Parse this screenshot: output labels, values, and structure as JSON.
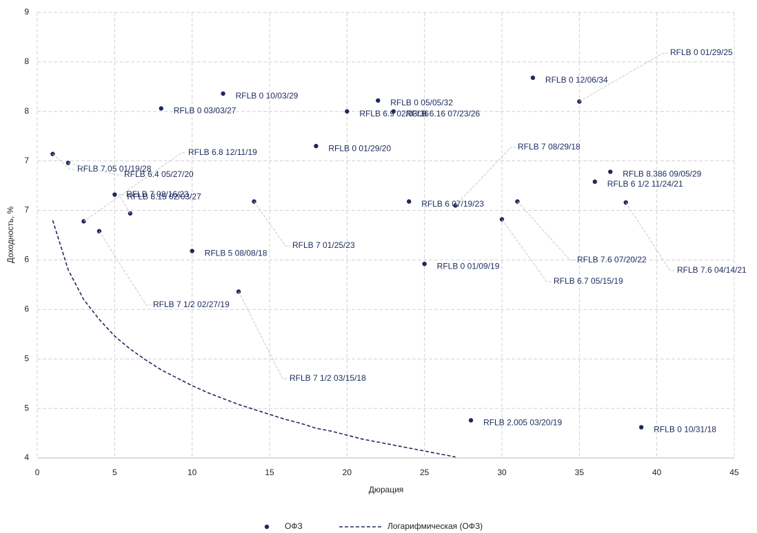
{
  "chart_data": {
    "type": "scatter",
    "xlabel": "Дюрация",
    "ylabel": "Доходность, %",
    "xlim": [
      0,
      45
    ],
    "xticks": [
      0,
      5,
      10,
      15,
      20,
      25,
      30,
      35,
      40,
      45
    ],
    "ylim": [
      4,
      8.5
    ],
    "yticks": [
      {
        "value": 4,
        "label": "4"
      },
      {
        "value": 4.5,
        "label": "5"
      },
      {
        "value": 5,
        "label": "5"
      },
      {
        "value": 5.5,
        "label": "6"
      },
      {
        "value": 6,
        "label": "6"
      },
      {
        "value": 6.5,
        "label": "7"
      },
      {
        "value": 7,
        "label": "7"
      },
      {
        "value": 7.5,
        "label": "8"
      },
      {
        "value": 8,
        "label": "8"
      },
      {
        "value": 8.5,
        "label": "9"
      }
    ],
    "grid": true,
    "series": [
      {
        "name": "ОФЗ",
        "color": "#1c2a5c",
        "x": [
          1,
          2,
          3,
          4,
          5,
          6,
          8,
          10,
          12,
          13,
          14,
          18,
          20,
          22,
          23,
          24,
          25,
          27,
          28,
          30,
          31,
          32,
          35,
          36,
          37,
          38,
          39
        ],
        "values": [
          7.07,
          6.98,
          6.39,
          6.29,
          6.66,
          6.47,
          7.53,
          6.09,
          7.68,
          5.68,
          6.59,
          7.15,
          7.5,
          7.61,
          7.5,
          6.59,
          5.96,
          6.55,
          4.38,
          6.41,
          6.59,
          7.84,
          7.6,
          6.79,
          6.89,
          6.58,
          4.31
        ],
        "labels": [
          "RFLB 7.05 01/19/28",
          "RFLB 6.4 05/27/20",
          "RFLB 6.8 12/11/19",
          "RFLB 7 1/2 02/27/19",
          "RFLB 8.15 02/03/27",
          "RFLB 7 08/16/23",
          "RFLB 0 03/03/27",
          "RFLB 5 08/08/18",
          "RFLB 0 10/03/29",
          "RFLB 7 1/2 03/15/18",
          "RFLB 7 01/25/23",
          "RFLB 0 01/29/20",
          "RFLB 6.9 02/03/36",
          "RFLB 0 05/05/32",
          "RFLB 6.16 07/23/26",
          "RFLB 6 07/19/23",
          "RFLB 0 01/09/19",
          "RFLB 7 08/29/18",
          "RFLB 2.005 03/20/19",
          "RFLB 6.7 05/15/19",
          "RFLB 7.6 07/20/22",
          "RFLB 0 12/06/34",
          "RFLB 0 01/29/25",
          "RFLB 6 1/2 11/24/21",
          "RFLB 8.386 09/05/29",
          "RFLB 7.6 04/14/21",
          "RFLB 0 10/31/18"
        ]
      },
      {
        "name": "Логарифмическая (ОФЗ)",
        "color": "#1c2a5c",
        "line": "dashed",
        "x": [
          1,
          2,
          3,
          4,
          5,
          6,
          7,
          8,
          9,
          10,
          11,
          12,
          13,
          14,
          15,
          16,
          17,
          18,
          19,
          20,
          21,
          22,
          23,
          24,
          25,
          26,
          27
        ],
        "values": [
          6.4,
          5.9,
          5.6,
          5.4,
          5.23,
          5.1,
          4.99,
          4.89,
          4.81,
          4.73,
          4.66,
          4.6,
          4.54,
          4.49,
          4.44,
          4.39,
          4.35,
          4.3,
          4.27,
          4.23,
          4.19,
          4.16,
          4.13,
          4.1,
          4.07,
          4.04,
          4.01
        ]
      }
    ]
  }
}
